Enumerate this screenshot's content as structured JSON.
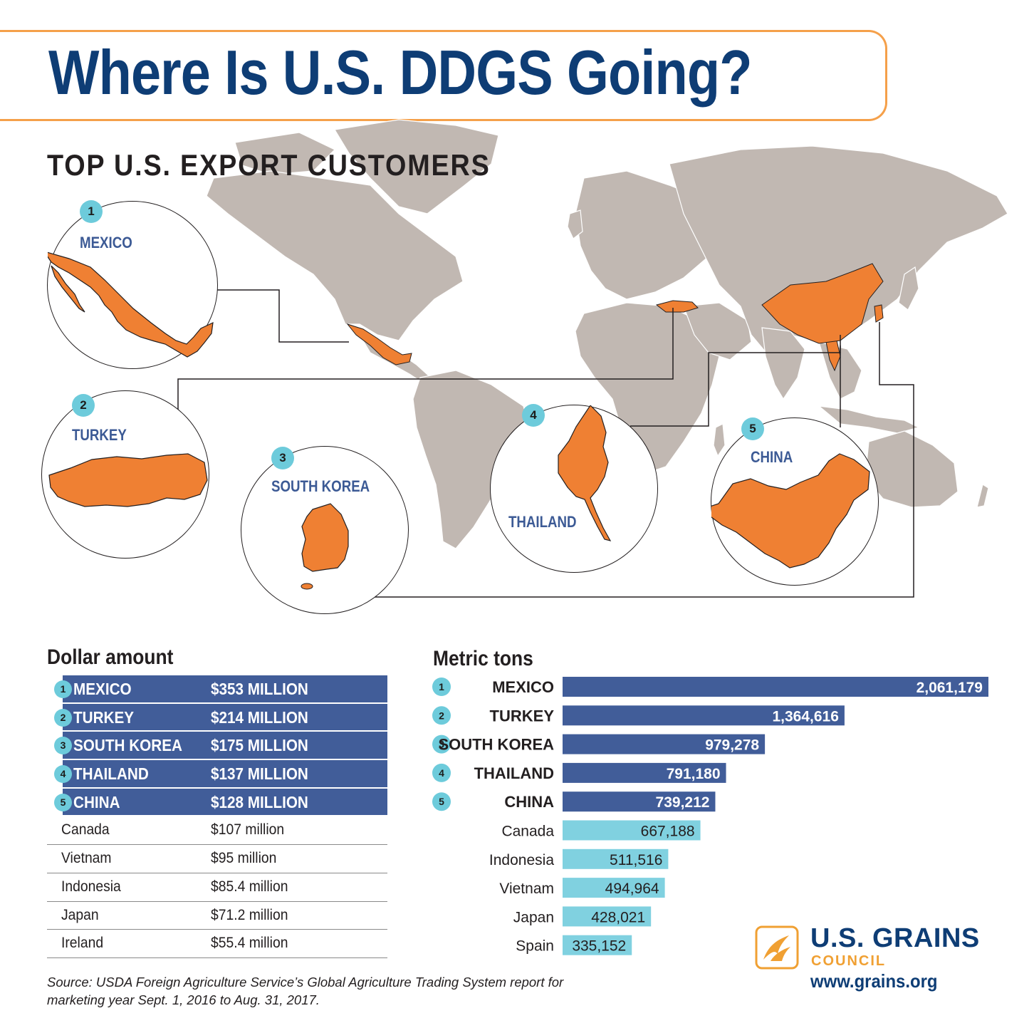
{
  "title": "Where Is U.S. DDGS Going?",
  "subtitle": "TOP U.S. EXPORT CUSTOMERS",
  "colors": {
    "title_blue": "#0e3d75",
    "banner_orange": "#f5a04a",
    "highlight_orange": "#ef8033",
    "land_gray": "#c1b8b2",
    "top_row_blue": "#415d99",
    "other_bar_cyan": "#80d1e0",
    "badge_cyan": "#6dcbdb",
    "logo_gold": "#f0a033"
  },
  "insets": [
    {
      "rank": "1",
      "country": "MEXICO"
    },
    {
      "rank": "2",
      "country": "TURKEY"
    },
    {
      "rank": "3",
      "country": "SOUTH KOREA"
    },
    {
      "rank": "4",
      "country": "THAILAND"
    },
    {
      "rank": "5",
      "country": "CHINA"
    }
  ],
  "dollar_section": {
    "heading": "Dollar amount",
    "top_rows": [
      {
        "rank": "1",
        "country": "MEXICO",
        "amount": "$353 MILLION"
      },
      {
        "rank": "2",
        "country": "TURKEY",
        "amount": "$214 MILLION"
      },
      {
        "rank": "3",
        "country": "SOUTH KOREA",
        "amount": "$175 MILLION"
      },
      {
        "rank": "4",
        "country": "THAILAND",
        "amount": "$137 MILLION"
      },
      {
        "rank": "5",
        "country": "CHINA",
        "amount": "$128 MILLION"
      }
    ],
    "other_rows": [
      {
        "country": "Canada",
        "amount": "$107 million"
      },
      {
        "country": "Vietnam",
        "amount": "$95 million"
      },
      {
        "country": "Indonesia",
        "amount": "$85.4 million"
      },
      {
        "country": "Japan",
        "amount": "$71.2 million"
      },
      {
        "country": "Ireland",
        "amount": "$55.4 million"
      }
    ]
  },
  "chart_data": {
    "type": "bar",
    "orientation": "horizontal",
    "title": "Metric tons",
    "categories": [
      "MEXICO",
      "TURKEY",
      "SOUTH KOREA",
      "THAILAND",
      "CHINA",
      "Canada",
      "Indonesia",
      "Vietnam",
      "Japan",
      "Spain"
    ],
    "ranks": [
      "1",
      "2",
      "3",
      "4",
      "5",
      "",
      "",
      "",
      "",
      ""
    ],
    "values": [
      2061179,
      1364616,
      979278,
      791180,
      739212,
      667188,
      511516,
      494964,
      428021,
      335152
    ],
    "value_labels": [
      "2,061,179",
      "1,364,616",
      "979,278",
      "791,180",
      "739,212",
      "667,188",
      "511,516",
      "494,964",
      "428,021",
      "335,152"
    ],
    "highlight_count": 5,
    "xlim": [
      0,
      2061179
    ],
    "grid": false,
    "legend": "none"
  },
  "logo": {
    "name": "U.S. GRAINS",
    "sub": "COUNCIL",
    "url": "www.grains.org"
  },
  "source": "Source: USDA Foreign Agriculture Service’s Global Agriculture Trading System report for marketing year Sept. 1, 2016 to Aug. 31, 2017."
}
